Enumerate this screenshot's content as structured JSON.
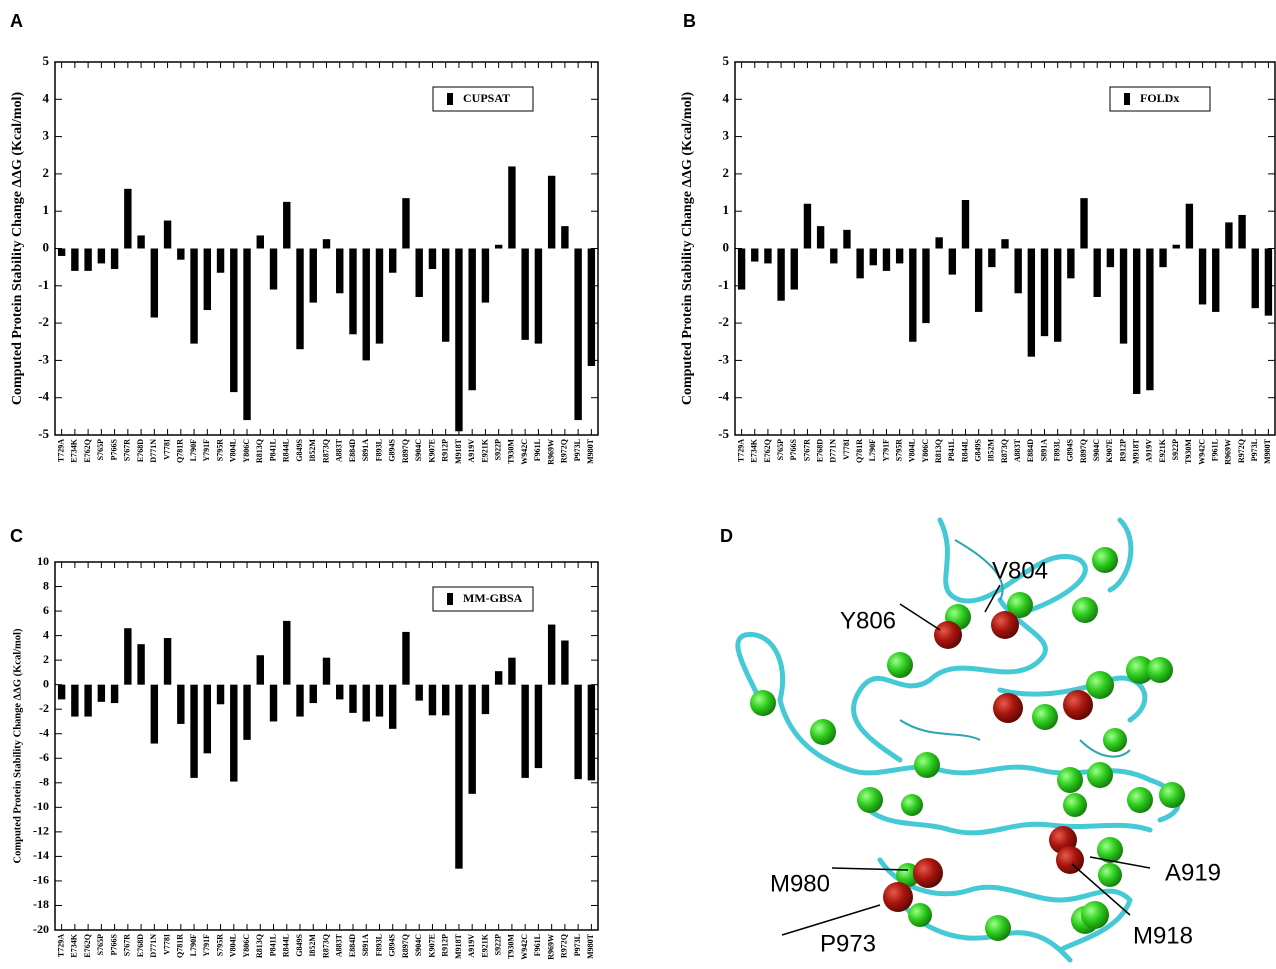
{
  "chart_data": [
    {
      "panel": "A",
      "type": "bar",
      "ylabel": "Computed Protein Stability Change ΔΔG (Kcal/mol)",
      "categories": [
        "T729A",
        "E734K",
        "E762Q",
        "S765P",
        "P766S",
        "S767R",
        "E768D",
        "D771N",
        "V778I",
        "Q781R",
        "L790F",
        "Y791F",
        "S795R",
        "V804L",
        "Y806C",
        "R813Q",
        "P841L",
        "R844L",
        "G849S",
        "I852M",
        "R873Q",
        "A883T",
        "E884D",
        "S891A",
        "F893L",
        "G894S",
        "R897Q",
        "S904C",
        "K907E",
        "R912P",
        "M918T",
        "A919V",
        "E921K",
        "S922P",
        "T930M",
        "W942C",
        "F961L",
        "R969W",
        "R972Q",
        "P973L",
        "M980T"
      ],
      "series": [
        {
          "name": "CUPSAT",
          "color": "#000000",
          "values": [
            -0.2,
            -0.6,
            -0.6,
            -0.4,
            -0.55,
            1.6,
            0.35,
            -1.85,
            0.75,
            -0.3,
            -2.55,
            -1.65,
            -0.65,
            -3.85,
            -4.6,
            0.35,
            -1.1,
            1.25,
            -2.7,
            -1.45,
            0.25,
            -1.2,
            -2.3,
            -3.0,
            -2.55,
            -0.65,
            1.35,
            -1.3,
            -0.55,
            -2.5,
            -4.9,
            -3.8,
            -1.45,
            0.1,
            2.2,
            -2.45,
            -2.55,
            1.95,
            0.6,
            -4.6,
            -3.15
          ]
        }
      ],
      "ylim": [
        -5,
        5
      ],
      "yticks": [
        -5,
        -4,
        -3,
        -2,
        -1,
        0,
        1,
        2,
        3,
        4,
        5
      ],
      "legend": "upper right"
    },
    {
      "panel": "B",
      "type": "bar",
      "ylabel": "Computed Protein Stability Change ΔΔG (Kcal/mol)",
      "categories": [
        "T729A",
        "E734K",
        "E762Q",
        "S765P",
        "P766S",
        "S767R",
        "E768D",
        "D771N",
        "V778I",
        "Q781R",
        "L790F",
        "Y791F",
        "S795R",
        "V804L",
        "Y806C",
        "R813Q",
        "P841L",
        "R844L",
        "G849S",
        "I852M",
        "R873Q",
        "A883T",
        "E884D",
        "S891A",
        "F893L",
        "G894S",
        "R897Q",
        "S904C",
        "K907E",
        "R912P",
        "M918T",
        "A919V",
        "E921K",
        "S922P",
        "T930M",
        "W942C",
        "F961L",
        "R969W",
        "R972Q",
        "P973L",
        "M980T"
      ],
      "series": [
        {
          "name": "FOLDx",
          "color": "#000000",
          "values": [
            -1.1,
            -0.35,
            -0.4,
            -1.4,
            -1.1,
            1.2,
            0.6,
            -0.4,
            0.5,
            -0.8,
            -0.45,
            -0.6,
            -0.4,
            -2.5,
            -2.0,
            0.3,
            -0.7,
            1.3,
            -1.7,
            -0.5,
            0.25,
            -1.2,
            -2.9,
            -2.35,
            -2.5,
            -0.8,
            1.35,
            -1.3,
            -0.5,
            -2.55,
            -3.9,
            -3.8,
            -0.5,
            0.1,
            1.2,
            -1.5,
            -1.7,
            0.7,
            0.9,
            -1.6,
            -1.8
          ]
        }
      ],
      "ylim": [
        -5,
        5
      ],
      "yticks": [
        -5,
        -4,
        -3,
        -2,
        -1,
        0,
        1,
        2,
        3,
        4,
        5
      ],
      "legend": "upper right"
    },
    {
      "panel": "C",
      "type": "bar",
      "ylabel": "Computed Protein Stability Change ΔΔG (Kcal/mol)",
      "categories": [
        "T729A",
        "E734K",
        "E762Q",
        "S765P",
        "P766S",
        "S767R",
        "E768D",
        "D771N",
        "V778I",
        "Q781R",
        "L790F",
        "Y791F",
        "S795R",
        "V804L",
        "Y806C",
        "R813Q",
        "P841L",
        "R844L",
        "G849S",
        "I852M",
        "R873Q",
        "A883T",
        "E884D",
        "S891A",
        "F893L",
        "G894S",
        "R897Q",
        "S904C",
        "K907E",
        "R912P",
        "M918T",
        "A919V",
        "E921K",
        "S922P",
        "T930M",
        "W942C",
        "F961L",
        "R969W",
        "R972Q",
        "P973L",
        "M980T"
      ],
      "series": [
        {
          "name": "MM-GBSA",
          "color": "#000000",
          "values": [
            -1.2,
            -2.6,
            -2.6,
            -1.4,
            -1.5,
            4.6,
            3.3,
            -4.8,
            3.8,
            -3.2,
            -7.6,
            -5.6,
            -1.6,
            -7.9,
            -4.5,
            2.4,
            -3.0,
            5.2,
            -2.6,
            -1.5,
            2.2,
            -1.2,
            -2.3,
            -3.0,
            -2.6,
            -3.6,
            4.3,
            -1.3,
            -2.5,
            -2.5,
            -15.0,
            -8.9,
            -2.4,
            1.1,
            2.2,
            -7.6,
            -6.8,
            4.9,
            3.6,
            -7.7,
            -7.8
          ]
        }
      ],
      "ylim": [
        -20,
        10
      ],
      "yticks": [
        -20,
        -18,
        -16,
        -14,
        -12,
        -10,
        -8,
        -6,
        -4,
        -2,
        0,
        2,
        4,
        6,
        8,
        10
      ],
      "legend": "upper right"
    }
  ],
  "structure": {
    "panel": "D",
    "labels": [
      "V804",
      "Y806",
      "M980",
      "P973",
      "A919",
      "M918"
    ]
  }
}
